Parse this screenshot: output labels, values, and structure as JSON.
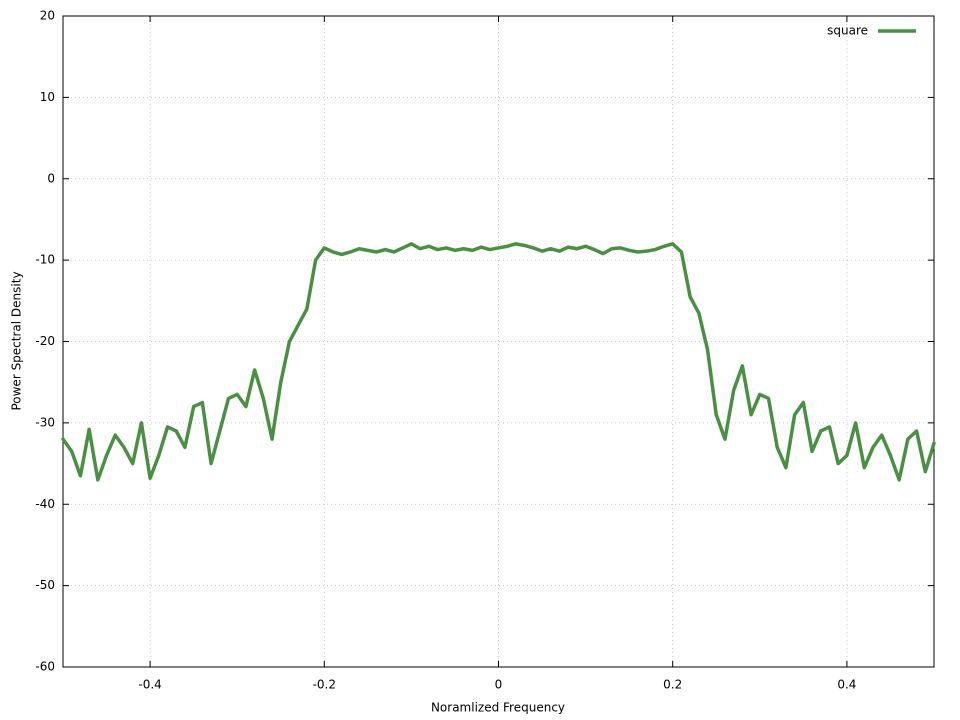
{
  "chart_data": {
    "type": "line",
    "x_label": "Noramlized Frequency",
    "y_label": "Power Spectral Density",
    "xlim": [
      -0.5,
      0.5
    ],
    "ylim": [
      -60,
      20
    ],
    "xticks": [
      -0.4,
      -0.2,
      0,
      0.2,
      0.4
    ],
    "yticks": [
      -60,
      -50,
      -40,
      -30,
      -20,
      -10,
      0,
      10,
      20
    ],
    "grid": true,
    "legend": "upper right",
    "x": [
      -0.5,
      -0.49,
      -0.48,
      -0.47,
      -0.46,
      -0.45,
      -0.44,
      -0.43,
      -0.42,
      -0.41,
      -0.4,
      -0.39,
      -0.38,
      -0.37,
      -0.36,
      -0.35,
      -0.34,
      -0.33,
      -0.32,
      -0.31,
      -0.3,
      -0.29,
      -0.28,
      -0.27,
      -0.26,
      -0.25,
      -0.24,
      -0.23,
      -0.22,
      -0.21,
      -0.2,
      -0.19,
      -0.18,
      -0.17,
      -0.16,
      -0.15,
      -0.14,
      -0.13,
      -0.12,
      -0.11,
      -0.1,
      -0.09,
      -0.08,
      -0.07,
      -0.06,
      -0.05,
      -0.04,
      -0.03,
      -0.02,
      -0.01,
      0,
      0.01,
      0.02,
      0.03,
      0.04,
      0.05,
      0.06,
      0.07,
      0.08,
      0.09,
      0.1,
      0.11,
      0.12,
      0.13,
      0.14,
      0.15,
      0.16,
      0.17,
      0.18,
      0.19,
      0.2,
      0.21,
      0.22,
      0.23,
      0.24,
      0.25,
      0.26,
      0.27,
      0.28,
      0.29,
      0.3,
      0.31,
      0.32,
      0.33,
      0.34,
      0.35,
      0.36,
      0.37,
      0.38,
      0.39,
      0.4,
      0.41,
      0.42,
      0.43,
      0.44,
      0.45,
      0.46,
      0.47,
      0.48,
      0.49,
      0.5
    ],
    "series": [
      {
        "name": "square",
        "color": "#4a8f44",
        "values": [
          -32,
          -33.5,
          -36.5,
          -30.8,
          -37,
          -34,
          -31.5,
          -33,
          -35,
          -30,
          -36.8,
          -34,
          -30.5,
          -31,
          -33,
          -28,
          -27.5,
          -35,
          -31,
          -27,
          -26.5,
          -28,
          -23.5,
          -27,
          -32,
          -25,
          -20,
          -18,
          -16,
          -10,
          -8.5,
          -9.0,
          -9.3,
          -9.0,
          -8.6,
          -8.8,
          -9.0,
          -8.7,
          -9.0,
          -8.5,
          -8.0,
          -8.6,
          -8.3,
          -8.7,
          -8.5,
          -8.8,
          -8.6,
          -8.8,
          -8.4,
          -8.7,
          -8.5,
          -8.3,
          -8.0,
          -8.2,
          -8.5,
          -8.9,
          -8.6,
          -8.9,
          -8.4,
          -8.6,
          -8.3,
          -8.7,
          -9.2,
          -8.6,
          -8.5,
          -8.8,
          -9.0,
          -8.9,
          -8.7,
          -8.3,
          -8,
          -9,
          -14.5,
          -16.5,
          -21,
          -29,
          -32,
          -26,
          -23,
          -29,
          -26.5,
          -27,
          -33,
          -35.5,
          -29,
          -27.5,
          -33.5,
          -31,
          -30.5,
          -35,
          -34,
          -30,
          -35.5,
          -33,
          -31.5,
          -34,
          -37,
          -32,
          -31,
          -36,
          -32.5
        ]
      }
    ]
  }
}
